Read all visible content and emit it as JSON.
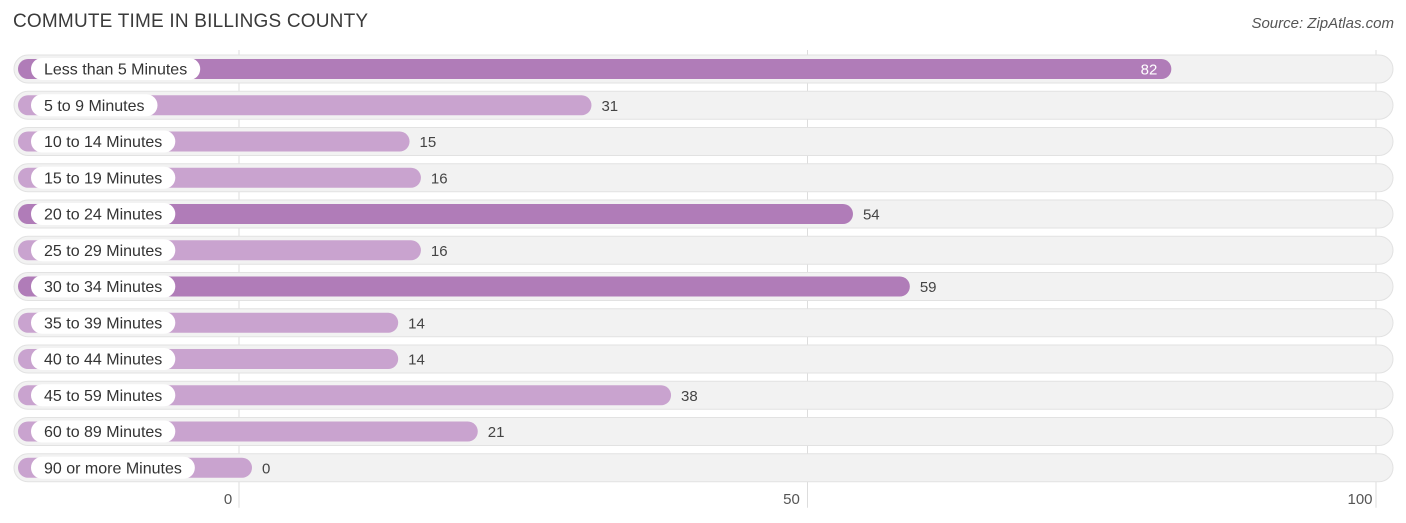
{
  "header": {
    "title": "COMMUTE TIME IN BILLINGS COUNTY",
    "source": "Source: ZipAtlas.com"
  },
  "colors": {
    "bar_strong": "#b07cb8",
    "bar_light": "#c9a3cf",
    "track": "#f2f2f2",
    "track_border": "#e2e2e2",
    "grid": "#dddddd"
  },
  "chart_data": {
    "type": "bar",
    "orientation": "horizontal",
    "title": "COMMUTE TIME IN BILLINGS COUNTY",
    "categories": [
      "Less than 5 Minutes",
      "5 to 9 Minutes",
      "10 to 14 Minutes",
      "15 to 19 Minutes",
      "20 to 24 Minutes",
      "25 to 29 Minutes",
      "30 to 34 Minutes",
      "35 to 39 Minutes",
      "40 to 44 Minutes",
      "45 to 59 Minutes",
      "60 to 89 Minutes",
      "90 or more Minutes"
    ],
    "values": [
      82,
      31,
      15,
      16,
      54,
      16,
      59,
      14,
      14,
      38,
      21,
      0
    ],
    "xlim": [
      0,
      100
    ],
    "xticks": [
      0,
      50,
      100
    ],
    "xlabel": "",
    "ylabel": "",
    "grid": true
  }
}
